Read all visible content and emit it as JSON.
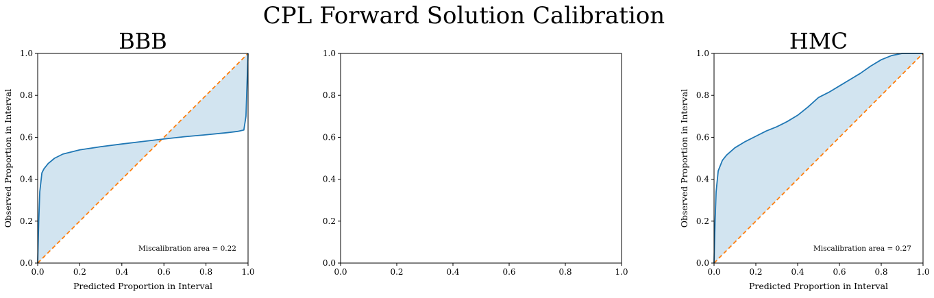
{
  "figure": {
    "title": "CPL Forward Solution Calibration"
  },
  "chart_data": [
    {
      "type": "line",
      "title": "BBB",
      "xlabel": "Predicted Proportion in Interval",
      "ylabel": "Observed Proportion in Interval",
      "xlim": [
        0.0,
        1.0
      ],
      "ylim": [
        0.0,
        1.0
      ],
      "xticks": [
        "0.0",
        "0.2",
        "0.4",
        "0.6",
        "0.8",
        "1.0"
      ],
      "yticks": [
        "0.0",
        "0.2",
        "0.4",
        "0.6",
        "0.8",
        "1.0"
      ],
      "grid": false,
      "annotation": "Miscalibration area = 0.22",
      "series": [
        {
          "kind": "calibration",
          "color": "#1f77b4",
          "x": [
            0,
            0.005,
            0.01,
            0.02,
            0.03,
            0.05,
            0.08,
            0.12,
            0.2,
            0.3,
            0.4,
            0.5,
            0.6,
            0.7,
            0.8,
            0.9,
            0.95,
            0.98,
            0.99,
            0.995,
            1.0
          ],
          "y": [
            0,
            0.2,
            0.34,
            0.43,
            0.45,
            0.475,
            0.5,
            0.52,
            0.54,
            0.555,
            0.568,
            0.58,
            0.592,
            0.603,
            0.612,
            0.622,
            0.628,
            0.635,
            0.7,
            0.85,
            1.0
          ]
        },
        {
          "kind": "ideal",
          "color": "#ff7f0e",
          "x": [
            0,
            1
          ],
          "y": [
            0,
            1
          ]
        }
      ]
    },
    {
      "type": "line",
      "title": "",
      "xlabel": "",
      "ylabel": "",
      "xlim": [
        0.0,
        1.0
      ],
      "ylim": [
        0.0,
        1.0
      ],
      "xticks": [
        "0.0",
        "0.2",
        "0.4",
        "0.6",
        "0.8",
        "1.0"
      ],
      "yticks": [
        "0.0",
        "0.2",
        "0.4",
        "0.6",
        "0.8",
        "1.0"
      ],
      "grid": false,
      "series": []
    },
    {
      "type": "line",
      "title": "HMC",
      "xlabel": "Predicted Proportion in Interval",
      "ylabel": "Observed Proportion in Interval",
      "xlim": [
        0.0,
        1.0
      ],
      "ylim": [
        0.0,
        1.0
      ],
      "xticks": [
        "0.0",
        "0.2",
        "0.4",
        "0.6",
        "0.8",
        "1.0"
      ],
      "yticks": [
        "0.0",
        "0.2",
        "0.4",
        "0.6",
        "0.8",
        "1.0"
      ],
      "grid": false,
      "annotation": "Miscalibration area = 0.27",
      "series": [
        {
          "kind": "calibration",
          "color": "#1f77b4",
          "x": [
            0,
            0.005,
            0.01,
            0.02,
            0.04,
            0.06,
            0.1,
            0.15,
            0.2,
            0.25,
            0.3,
            0.35,
            0.4,
            0.45,
            0.5,
            0.55,
            0.6,
            0.65,
            0.7,
            0.75,
            0.8,
            0.85,
            0.9,
            0.95,
            1.0
          ],
          "y": [
            0,
            0.2,
            0.34,
            0.44,
            0.49,
            0.515,
            0.55,
            0.58,
            0.605,
            0.63,
            0.65,
            0.675,
            0.705,
            0.745,
            0.79,
            0.815,
            0.845,
            0.875,
            0.905,
            0.94,
            0.97,
            0.99,
            1.0,
            1.0,
            1.0
          ]
        },
        {
          "kind": "ideal",
          "color": "#ff7f0e",
          "x": [
            0,
            1
          ],
          "y": [
            0,
            1
          ]
        }
      ]
    }
  ]
}
